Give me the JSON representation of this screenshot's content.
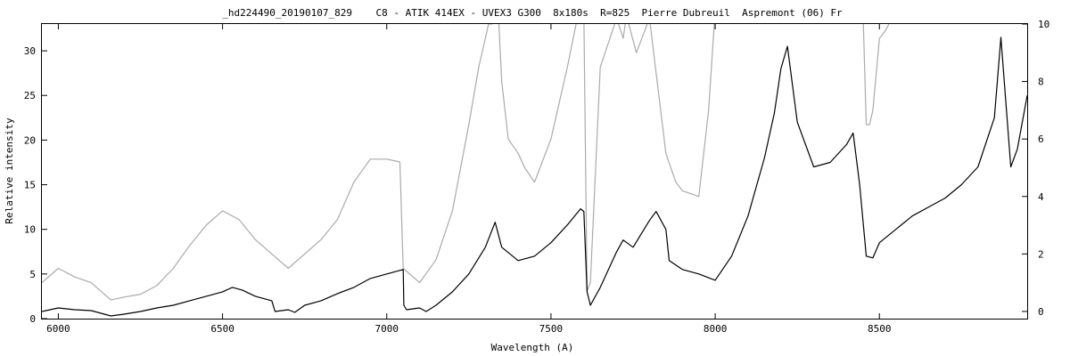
{
  "chart_data": {
    "type": "line",
    "title": "_hd224490_20190107_829    C8 - ATIK 414EX - UVEX3 G300  8x180s  R=825  Pierre Dubreuil  Aspremont (06) Fr",
    "xlabel": "Wavelength (A)",
    "ylabel": "Relative intensity",
    "xlim": [
      5950,
      8950
    ],
    "ylim": [
      0,
      33
    ],
    "y2lim": [
      -0.25,
      10
    ],
    "x_ticks": [
      "6000",
      "6500",
      "7000",
      "7500",
      "8000",
      "8500"
    ],
    "y_ticks": [
      "0",
      "5",
      "10",
      "15",
      "20",
      "25",
      "30"
    ],
    "y2_ticks": [
      "0",
      "2",
      "4",
      "6",
      "8",
      "10"
    ],
    "grid": false,
    "legend": "none",
    "series": [
      {
        "color": "#000000",
        "axis": "left",
        "x": [
          5950,
          6000,
          6050,
          6100,
          6150,
          6160,
          6200,
          6250,
          6300,
          6350,
          6400,
          6450,
          6500,
          6530,
          6560,
          6600,
          6650,
          6660,
          6700,
          6720,
          6750,
          6800,
          6850,
          6900,
          6950,
          7000,
          7050,
          7052,
          7060,
          7100,
          7120,
          7150,
          7200,
          7250,
          7300,
          7330,
          7350,
          7400,
          7450,
          7500,
          7550,
          7590,
          7600,
          7610,
          7620,
          7650,
          7700,
          7720,
          7750,
          7800,
          7820,
          7850,
          7860,
          7900,
          7950,
          8000,
          8050,
          8100,
          8150,
          8180,
          8200,
          8220,
          8250,
          8300,
          8350,
          8400,
          8420,
          8440,
          8460,
          8480,
          8500,
          8550,
          8600,
          8650,
          8700,
          8750,
          8800,
          8850,
          8870,
          8900,
          8920,
          8950
        ],
        "y": [
          0.8,
          1.2,
          1.0,
          0.9,
          0.4,
          0.3,
          0.5,
          0.8,
          1.2,
          1.5,
          2.0,
          2.5,
          3.0,
          3.5,
          3.2,
          2.5,
          2.0,
          0.8,
          1.0,
          0.7,
          1.5,
          2.0,
          2.8,
          3.5,
          4.5,
          5.0,
          5.5,
          1.5,
          1.0,
          1.2,
          0.8,
          1.5,
          3.0,
          5.0,
          8.0,
          10.8,
          8.0,
          6.5,
          7.0,
          8.5,
          10.5,
          12.3,
          12.0,
          3.0,
          1.5,
          3.5,
          7.5,
          8.8,
          8.0,
          11.0,
          12.0,
          10.0,
          6.5,
          5.5,
          5.0,
          4.3,
          7.0,
          11.5,
          18.0,
          23.0,
          28.0,
          30.5,
          22.0,
          17.0,
          17.5,
          19.5,
          20.8,
          15.0,
          7.0,
          6.8,
          8.5,
          10.0,
          11.5,
          12.5,
          13.5,
          15.0,
          17.0,
          22.5,
          31.5,
          17.0,
          19.0,
          25.0
        ]
      },
      {
        "color": "#aaaaaa",
        "axis": "right",
        "x": [
          5950,
          6000,
          6050,
          6100,
          6150,
          6160,
          6200,
          6250,
          6300,
          6350,
          6400,
          6450,
          6500,
          6550,
          6600,
          6650,
          6700,
          6750,
          6800,
          6850,
          6900,
          6950,
          7000,
          7040,
          7050,
          7100,
          7150,
          7200,
          7250,
          7280,
          7300,
          7310,
          7320,
          7330,
          7340,
          7350,
          7370,
          7400,
          7420,
          7450,
          7500,
          7550,
          7580,
          7600,
          7610,
          7620,
          7630,
          7650,
          7700,
          7720,
          7730,
          7760,
          7800,
          7850,
          7880,
          7900,
          7950,
          7980,
          8000,
          8020,
          8050,
          8100,
          8150,
          8200,
          8250,
          8300,
          8350,
          8400,
          8450,
          8460,
          8470,
          8480,
          8500,
          8520,
          8550,
          8600,
          8650,
          8700,
          8750,
          8800,
          8850,
          8900,
          8950
        ],
        "y": [
          1.0,
          1.5,
          1.2,
          1.0,
          0.5,
          0.4,
          0.5,
          0.6,
          0.9,
          1.5,
          2.3,
          3.0,
          3.5,
          3.2,
          2.5,
          2.0,
          1.5,
          2.0,
          2.5,
          3.2,
          4.5,
          5.3,
          5.3,
          5.2,
          1.5,
          1.0,
          1.8,
          3.5,
          6.5,
          8.5,
          9.5,
          10.0,
          10.0,
          10.2,
          10.3,
          8.0,
          6.0,
          5.5,
          5.0,
          4.5,
          6.0,
          8.5,
          10.2,
          10.3,
          0.7,
          1.0,
          3.5,
          8.5,
          10.2,
          9.5,
          10.3,
          9.0,
          10.2,
          5.5,
          4.5,
          4.2,
          4.0,
          7.0,
          10.5,
          10.5,
          10.5,
          10.5,
          10.5,
          10.5,
          10.5,
          10.5,
          10.5,
          10.5,
          10.5,
          6.5,
          6.5,
          7.0,
          9.5,
          9.8,
          10.5,
          10.5,
          10.5,
          10.5,
          10.5,
          10.5,
          10.5,
          10.5,
          10.5
        ]
      }
    ]
  }
}
